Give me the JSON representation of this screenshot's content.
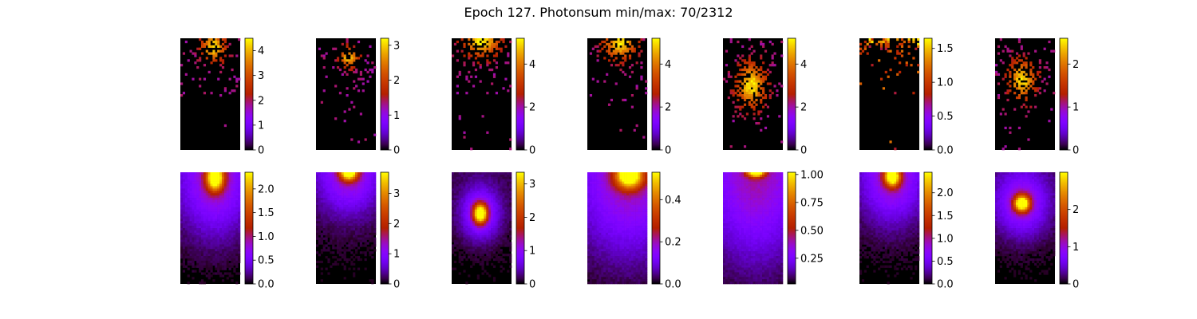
{
  "figure": {
    "title": "Epoch 127. Photonsum min/max: 70/2312",
    "colormap": "gnuplot",
    "background": "#ffffff"
  },
  "chart_data": [
    {
      "type": "heatmap",
      "row": 0,
      "col": 0,
      "style": "sparse",
      "peak": [
        0.55,
        0.08
      ],
      "spread": [
        0.16,
        0.1
      ],
      "vmin": 0,
      "vmax": 4.5,
      "ticks": [
        "0",
        "1",
        "2",
        "3",
        "4"
      ],
      "tick_values": [
        0,
        1,
        2,
        3,
        4
      ]
    },
    {
      "type": "heatmap",
      "row": 0,
      "col": 1,
      "style": "sparse",
      "peak": [
        0.55,
        0.17
      ],
      "spread": [
        0.12,
        0.07
      ],
      "vmin": 0,
      "vmax": 3.2,
      "ticks": [
        "0",
        "1",
        "2",
        "3"
      ],
      "tick_values": [
        0,
        1,
        2,
        3
      ]
    },
    {
      "type": "heatmap",
      "row": 0,
      "col": 2,
      "style": "sparse",
      "peak": [
        0.5,
        0.02
      ],
      "spread": [
        0.25,
        0.12
      ],
      "vmin": 0,
      "vmax": 5.2,
      "ticks": [
        "0",
        "2",
        "4"
      ],
      "tick_values": [
        0,
        2,
        4
      ]
    },
    {
      "type": "heatmap",
      "row": 0,
      "col": 3,
      "style": "sparse",
      "peak": [
        0.55,
        0.04
      ],
      "spread": [
        0.22,
        0.12
      ],
      "vmin": 0,
      "vmax": 5.2,
      "ticks": [
        "0",
        "2",
        "4"
      ],
      "tick_values": [
        0,
        2,
        4
      ]
    },
    {
      "type": "heatmap",
      "row": 0,
      "col": 4,
      "style": "sparse",
      "peak": [
        0.47,
        0.42
      ],
      "spread": [
        0.2,
        0.16
      ],
      "vmin": 0,
      "vmax": 5.2,
      "ticks": [
        "0",
        "2",
        "4"
      ],
      "tick_values": [
        0,
        2,
        4
      ]
    },
    {
      "type": "heatmap",
      "row": 0,
      "col": 5,
      "style": "edge",
      "peak": [
        0.5,
        0.02
      ],
      "spread": [
        0.5,
        0.1
      ],
      "vmin": 0,
      "vmax": 1.65,
      "ticks": [
        "0.0",
        "0.5",
        "1.0",
        "1.5"
      ],
      "tick_values": [
        0,
        0.5,
        1.0,
        1.5
      ]
    },
    {
      "type": "heatmap",
      "row": 0,
      "col": 6,
      "style": "sparse",
      "peak": [
        0.45,
        0.37
      ],
      "spread": [
        0.18,
        0.14
      ],
      "vmin": 0,
      "vmax": 2.6,
      "ticks": [
        "0",
        "1",
        "2"
      ],
      "tick_values": [
        0,
        1,
        2
      ]
    },
    {
      "type": "heatmap",
      "row": 1,
      "col": 0,
      "style": "smooth",
      "peak": [
        0.58,
        0.05
      ],
      "spread": [
        0.1,
        0.08
      ],
      "halo": [
        0.4,
        0.35
      ],
      "vmin": 0,
      "vmax": 2.35,
      "ticks": [
        "0.0",
        "0.5",
        "1.0",
        "1.5",
        "2.0"
      ],
      "tick_values": [
        0,
        0.5,
        1.0,
        1.5,
        2.0
      ]
    },
    {
      "type": "heatmap",
      "row": 1,
      "col": 1,
      "style": "smooth",
      "peak": [
        0.55,
        0.0
      ],
      "spread": [
        0.1,
        0.05
      ],
      "halo": [
        0.35,
        0.25
      ],
      "vmin": 0,
      "vmax": 3.7,
      "ticks": [
        "0",
        "1",
        "2",
        "3"
      ],
      "tick_values": [
        0,
        1,
        2,
        3
      ]
    },
    {
      "type": "heatmap",
      "row": 1,
      "col": 2,
      "style": "smooth",
      "peak": [
        0.48,
        0.37
      ],
      "spread": [
        0.08,
        0.06
      ],
      "halo": [
        0.22,
        0.16
      ],
      "vmin": 0,
      "vmax": 3.35,
      "ticks": [
        "0",
        "1",
        "2",
        "3"
      ],
      "tick_values": [
        0,
        1,
        2,
        3
      ]
    },
    {
      "type": "heatmap",
      "row": 1,
      "col": 3,
      "style": "smooth",
      "peak": [
        0.7,
        0.03
      ],
      "spread": [
        0.16,
        0.08
      ],
      "halo": [
        0.6,
        0.5
      ],
      "vmin": 0,
      "vmax": 0.53,
      "ticks": [
        "0.0",
        "0.2",
        "0.4"
      ],
      "tick_values": [
        0,
        0.2,
        0.4
      ]
    },
    {
      "type": "heatmap",
      "row": 1,
      "col": 4,
      "style": "smooth",
      "peak": [
        0.55,
        0.0
      ],
      "spread": [
        0.1,
        0.03
      ],
      "halo": [
        0.55,
        0.55
      ],
      "vmin": 0.02,
      "vmax": 1.02,
      "ticks": [
        "0.25",
        "0.50",
        "0.75",
        "1.00"
      ],
      "tick_values": [
        0.25,
        0.5,
        0.75,
        1.0
      ]
    },
    {
      "type": "heatmap",
      "row": 1,
      "col": 5,
      "style": "smooth",
      "peak": [
        0.55,
        0.04
      ],
      "spread": [
        0.09,
        0.06
      ],
      "halo": [
        0.35,
        0.28
      ],
      "vmin": 0,
      "vmax": 2.45,
      "ticks": [
        "0.0",
        "0.5",
        "1.0",
        "1.5",
        "2.0"
      ],
      "tick_values": [
        0,
        0.5,
        1.0,
        1.5,
        2.0
      ]
    },
    {
      "type": "heatmap",
      "row": 1,
      "col": 6,
      "style": "smooth",
      "peak": [
        0.45,
        0.28
      ],
      "spread": [
        0.09,
        0.05
      ],
      "halo": [
        0.3,
        0.2
      ],
      "vmin": 0,
      "vmax": 3.0,
      "ticks": [
        "0",
        "1",
        "2"
      ],
      "tick_values": [
        0,
        1,
        2
      ]
    }
  ]
}
